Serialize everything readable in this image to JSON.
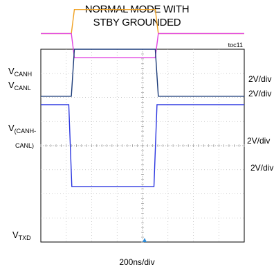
{
  "title": {
    "line1": "NORMAL MODE WITH",
    "line2": "STBY GROUNDED"
  },
  "figure_id": "toc11",
  "chart_data": {
    "type": "line",
    "title": "NORMAL MODE WITH STBY GROUNDED",
    "xlabel": "200ns/div",
    "x_divisions": 8,
    "y_divisions": 8,
    "grid": true,
    "series": [
      {
        "name": "VCANH",
        "label_main": "V",
        "label_sub": "CANH",
        "scale": "2V/div",
        "color": "#f0a020",
        "levels_div": [
          4.65,
          5.65,
          5.65,
          4.65
        ],
        "edges_div": [
          1.2,
          4.5
        ]
      },
      {
        "name": "VCANL",
        "label_main": "V",
        "label_sub": "CANL",
        "scale": "2V/div",
        "color": "#e040e0",
        "levels_div": [
          4.65,
          3.65,
          3.65,
          4.65
        ],
        "edges_div": [
          1.2,
          4.5
        ]
      },
      {
        "name": "V(CANH-CANL)",
        "label_main": "V",
        "label_sub": "(CANH-",
        "label_sub2": "CANL)",
        "scale": "2V/div",
        "color": "#1a3a78",
        "levels_div": [
          2.05,
          4.0,
          4.0,
          2.05
        ],
        "edges_div": [
          1.2,
          4.5
        ]
      },
      {
        "name": "VTXD",
        "label_main": "V",
        "label_sub": "TXD",
        "scale": "2V/div",
        "color": "#2a35e0",
        "levels_div": [
          1.7,
          -1.7,
          -1.7,
          1.7
        ],
        "edges_div": [
          1.1,
          4.45
        ]
      }
    ]
  }
}
